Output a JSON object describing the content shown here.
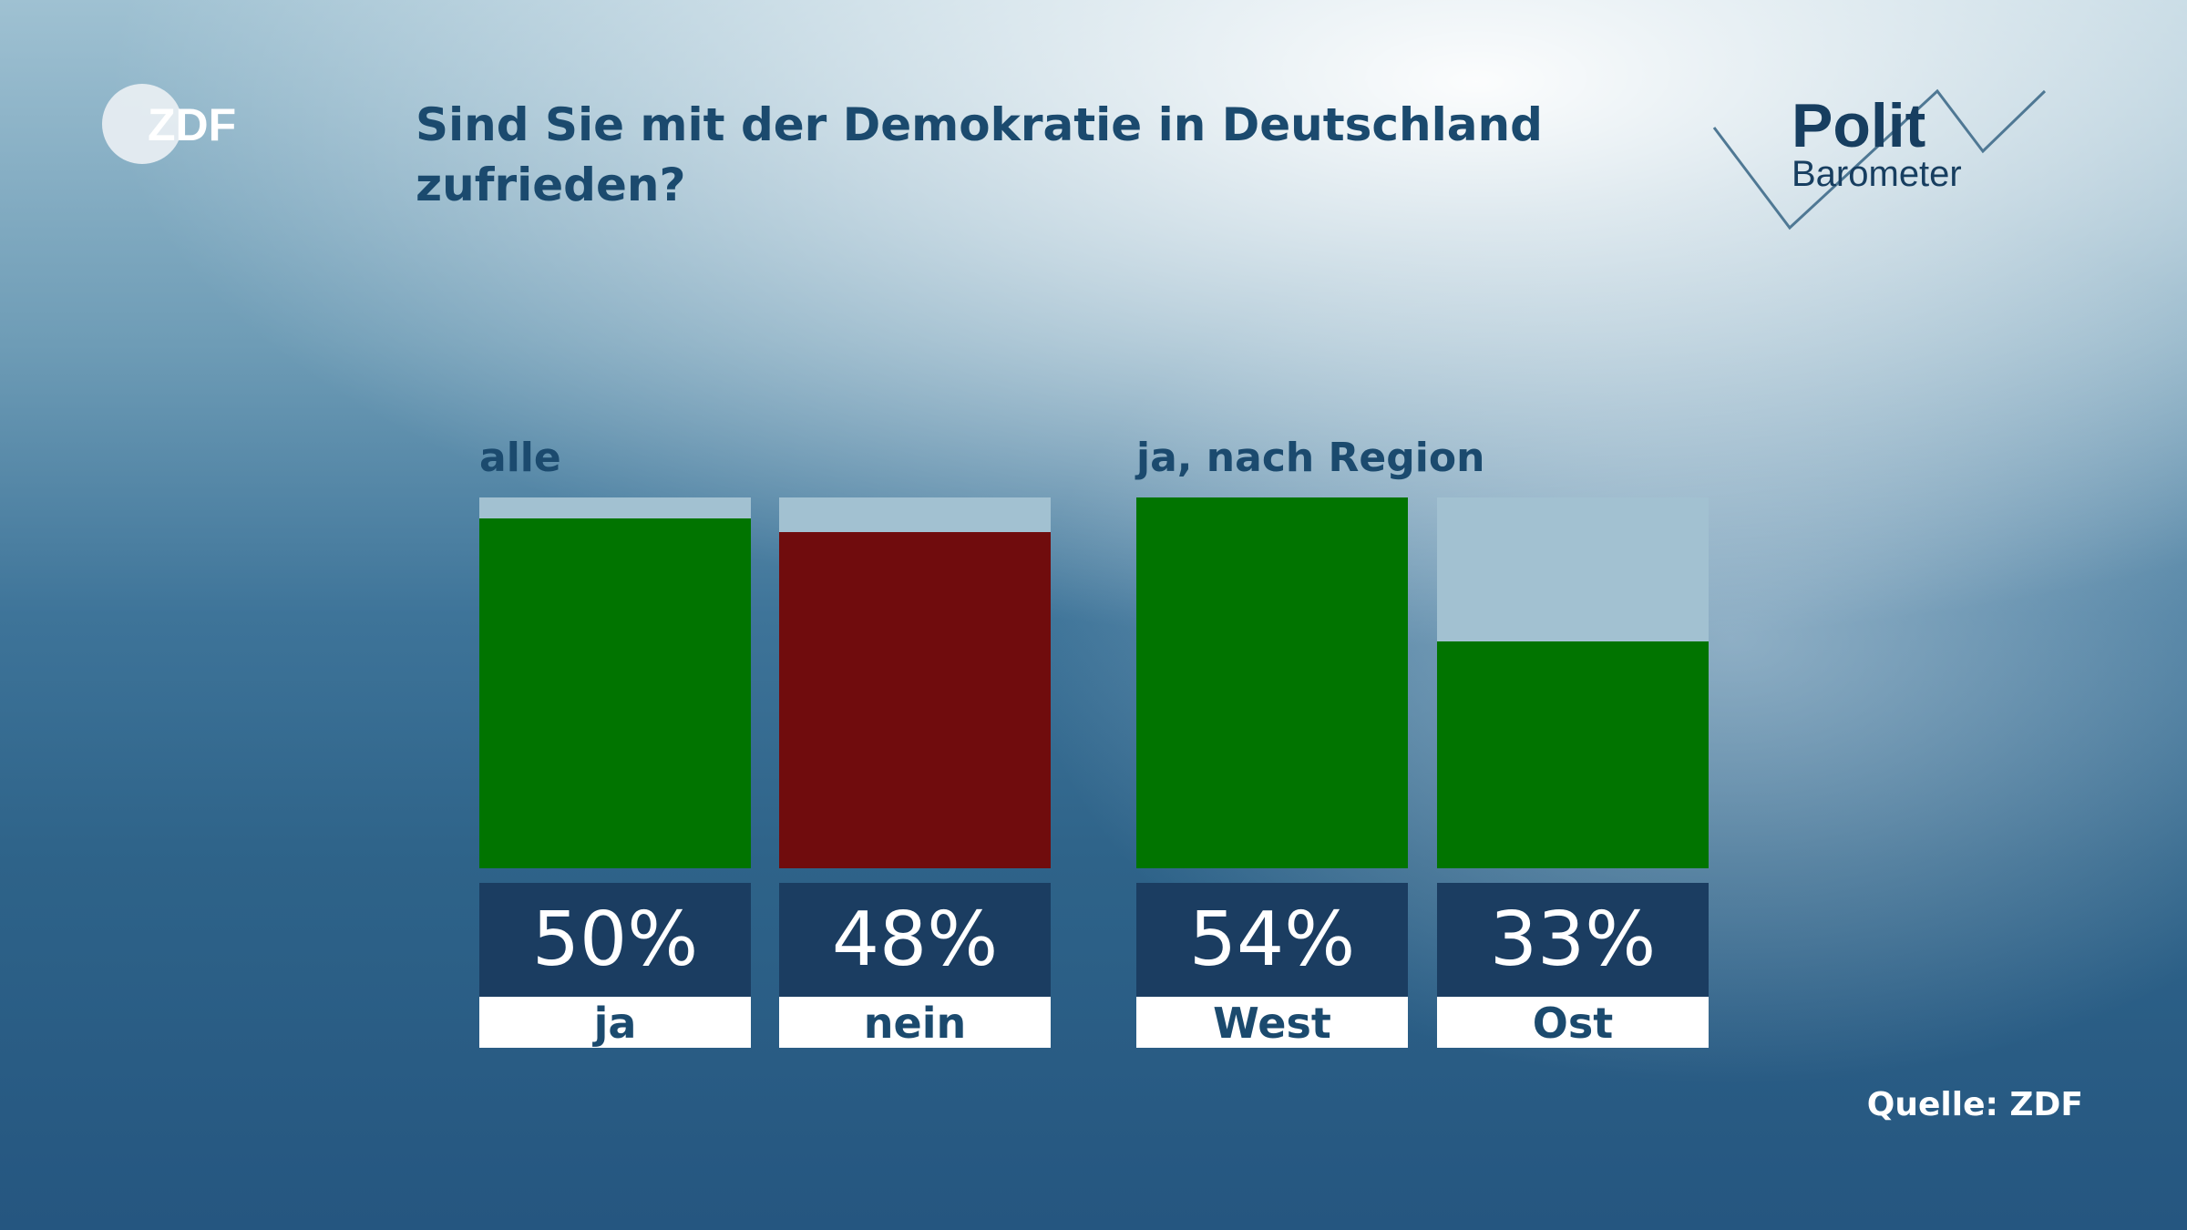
{
  "header": {
    "title": "Sind Sie mit der Demokratie in Deutschland zufrieden?",
    "broadcaster_logo": "ZDF",
    "show_logo_top": "Polit",
    "show_logo_bottom": "Barometer"
  },
  "footer": {
    "source": "Quelle: ZDF"
  },
  "colors": {
    "yes": "#017400",
    "no": "#700c0d",
    "empty_track": "#a2c1d1",
    "value_box": "#1b3d61",
    "text": "#1b4a6e"
  },
  "chart_data": [
    {
      "type": "bar",
      "group_label": "alle",
      "categories": [
        "ja",
        "nein"
      ],
      "values": [
        50,
        48
      ],
      "value_labels": [
        "50%",
        "48%"
      ],
      "bar_colors": [
        "#017400",
        "#700c0d"
      ],
      "ylim": [
        0,
        53
      ],
      "unit": "%"
    },
    {
      "type": "bar",
      "group_label": "ja, nach Region",
      "categories": [
        "West",
        "Ost"
      ],
      "values": [
        54,
        33
      ],
      "value_labels": [
        "54%",
        "33%"
      ],
      "bar_colors": [
        "#017400",
        "#017400"
      ],
      "ylim": [
        0,
        54
      ],
      "unit": "%"
    }
  ]
}
